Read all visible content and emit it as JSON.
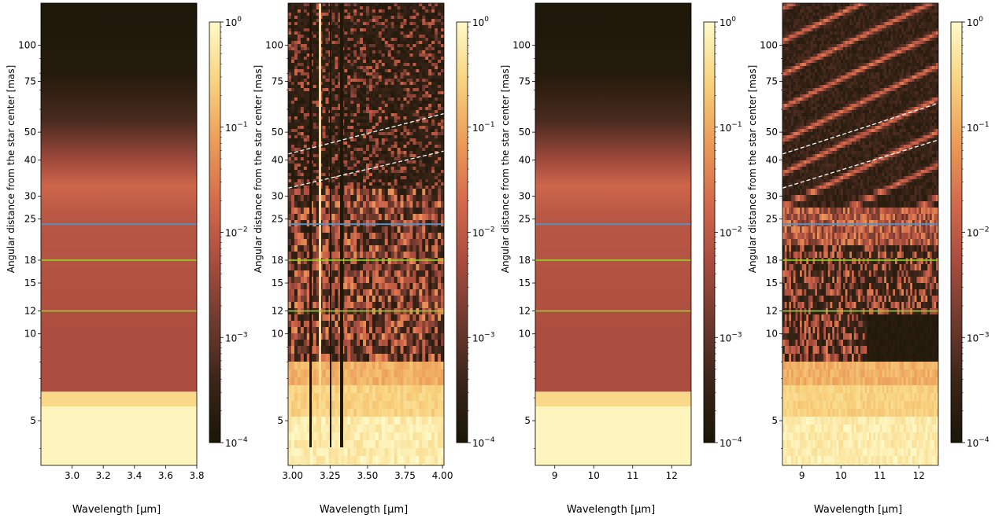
{
  "colormap": [
    "#1a1606",
    "#3a2418",
    "#6e3a2e",
    "#a84c3e",
    "#d46a4c",
    "#ec9c58",
    "#f8d27e",
    "#fffac8"
  ],
  "reference_lines": {
    "blue": {
      "value": 24,
      "color": "#5b8fc0"
    },
    "green": [
      {
        "value": 18,
        "color": "#9ad02a"
      },
      {
        "value": 12,
        "color": "#9ad02a"
      }
    ]
  },
  "chart_data": [
    {
      "type": "heatmap",
      "xlabel": "Wavelength [µm]",
      "ylabel": "Angular distance from the star center [mas]",
      "xlim": [
        2.8,
        3.8
      ],
      "x_ticks": [
        3.0,
        3.2,
        3.4,
        3.6,
        3.8
      ],
      "x_tick_labels": [
        "3.0",
        "3.2",
        "3.4",
        "3.6",
        "3.8"
      ],
      "y_scale": "log",
      "ylim": [
        3.5,
        140
      ],
      "y_ticks": [
        5,
        10,
        12,
        15,
        18,
        25,
        30,
        40,
        50,
        75,
        100
      ],
      "colorbar_scale": "log",
      "colorbar_range": [
        0.0001,
        1
      ],
      "colorbar_ticks": [
        {
          "base": "10",
          "exp": "0"
        },
        {
          "base": "10",
          "exp": "−1"
        },
        {
          "base": "10",
          "exp": "−2"
        },
        {
          "base": "10",
          "exp": "−3"
        },
        {
          "base": "10",
          "exp": "−4"
        }
      ],
      "style": "smooth",
      "dashed_lines": false
    },
    {
      "type": "heatmap",
      "xlabel": "Wavelength [µm]",
      "ylabel": "Angular distance from the star center [mas]",
      "xlim": [
        2.97,
        4.01
      ],
      "x_ticks": [
        3.0,
        3.25,
        3.5,
        3.75,
        4.0
      ],
      "x_tick_labels": [
        "3.00",
        "3.25",
        "3.50",
        "3.75",
        "4.00"
      ],
      "y_scale": "log",
      "ylim": [
        3.5,
        140
      ],
      "y_ticks": [
        5,
        10,
        12,
        15,
        18,
        25,
        30,
        40,
        50,
        75,
        100
      ],
      "colorbar_scale": "log",
      "colorbar_range": [
        0.0001,
        1
      ],
      "colorbar_ticks": [
        {
          "base": "10",
          "exp": "0"
        },
        {
          "base": "10",
          "exp": "−1"
        },
        {
          "base": "10",
          "exp": "−2"
        },
        {
          "base": "10",
          "exp": "−3"
        },
        {
          "base": "10",
          "exp": "−4"
        }
      ],
      "style": "noisy",
      "dashed_lines": true
    },
    {
      "type": "heatmap",
      "xlabel": "Wavelength [µm]",
      "ylabel": "Angular distance from the star center [mas]",
      "xlim": [
        8.5,
        12.5
      ],
      "x_ticks": [
        9,
        10,
        11,
        12
      ],
      "x_tick_labels": [
        "9",
        "10",
        "11",
        "12"
      ],
      "y_scale": "log",
      "ylim": [
        3.5,
        140
      ],
      "y_ticks": [
        5,
        10,
        12,
        15,
        18,
        25,
        30,
        40,
        50,
        75,
        100
      ],
      "colorbar_scale": "log",
      "colorbar_range": [
        0.0001,
        1
      ],
      "colorbar_ticks": [
        {
          "base": "10",
          "exp": "0"
        },
        {
          "base": "10",
          "exp": "−1"
        },
        {
          "base": "10",
          "exp": "−2"
        },
        {
          "base": "10",
          "exp": "−3"
        },
        {
          "base": "10",
          "exp": "−4"
        }
      ],
      "style": "smooth",
      "dashed_lines": false
    },
    {
      "type": "heatmap",
      "xlabel": "Wavelength [µm]",
      "ylabel": "Angular distance from the star center [mas]",
      "xlim": [
        8.5,
        12.5
      ],
      "x_ticks": [
        9,
        10,
        11,
        12
      ],
      "x_tick_labels": [
        "9",
        "10",
        "11",
        "12"
      ],
      "y_scale": "log",
      "ylim": [
        3.5,
        140
      ],
      "y_ticks": [
        5,
        10,
        12,
        15,
        18,
        25,
        30,
        40,
        50,
        75,
        100
      ],
      "colorbar_scale": "log",
      "colorbar_range": [
        0.0001,
        1
      ],
      "colorbar_ticks": [
        {
          "base": "10",
          "exp": "0"
        },
        {
          "base": "10",
          "exp": "−1"
        },
        {
          "base": "10",
          "exp": "−2"
        },
        {
          "base": "10",
          "exp": "−3"
        },
        {
          "base": "10",
          "exp": "−4"
        }
      ],
      "style": "fringes",
      "dashed_lines": true
    }
  ]
}
